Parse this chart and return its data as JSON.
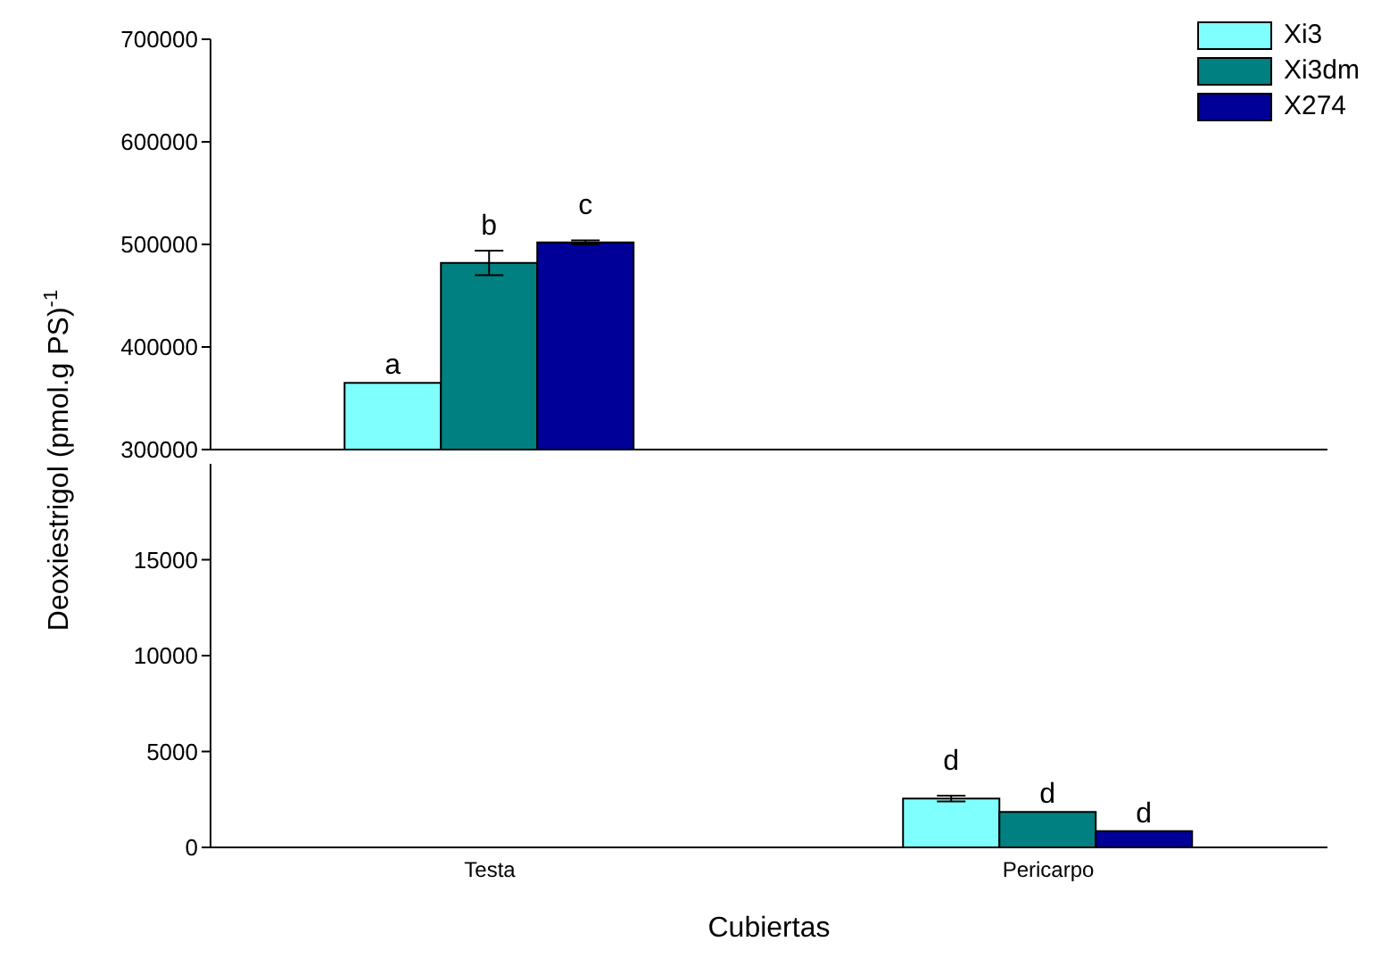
{
  "chart_data": [
    {
      "type": "bar",
      "ylabel": "Deoxiestrigol (pmol.g PS)$^{-1}$",
      "categories": [
        null,
        null
      ],
      "ylim": [
        300000,
        700000
      ],
      "yticks": [
        300000,
        400000,
        500000,
        600000,
        700000
      ],
      "legend": "top right",
      "series": [
        {
          "name": "Xi3",
          "color": "#80ffff",
          "values": [
            365000,
            null
          ],
          "value_labels": [
            "a",
            null
          ]
        },
        {
          "name": "Xi3dm",
          "color": "#008080",
          "values": [
            482000,
            null
          ],
          "errors": [
            12000,
            null
          ],
          "value_labels": [
            "b",
            null
          ]
        },
        {
          "name": "X274",
          "color": "#000099",
          "values": [
            502000,
            null
          ],
          "errors": [
            2000,
            null
          ],
          "value_labels": [
            "c",
            null
          ]
        }
      ]
    },
    {
      "type": "bar",
      "xlabel": "Cubiertas",
      "categories": [
        "Testa",
        "Pericarpo"
      ],
      "ylim": [
        0,
        20000
      ],
      "yticks": [
        0,
        5000,
        10000,
        15000
      ],
      "legend": false,
      "series": [
        {
          "color": "#80ffff",
          "values": [
            null,
            2550
          ],
          "errors": [
            null,
            150
          ],
          "value_labels": [
            null,
            "d"
          ]
        },
        {
          "color": "#008080",
          "values": [
            null,
            1850
          ],
          "value_labels": [
            null,
            "d"
          ]
        },
        {
          "color": "#000099",
          "values": [
            null,
            850
          ],
          "value_labels": [
            null,
            "d"
          ]
        }
      ]
    }
  ]
}
